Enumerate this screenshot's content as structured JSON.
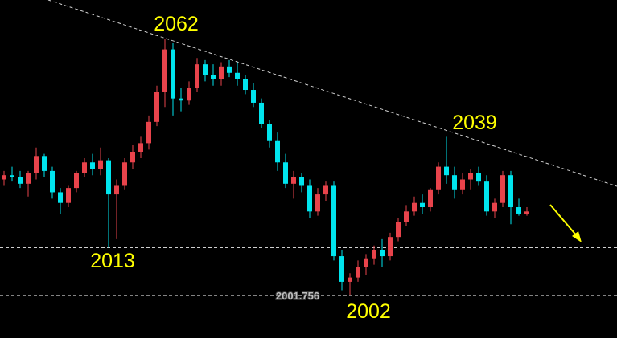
{
  "chart_data": {
    "type": "candlestick",
    "up_color": "#e8434b",
    "down_color": "#00e5ee",
    "level_color": "#cfcfcf",
    "ylim": [
      1991.8,
      2071.1
    ],
    "open": [
      2029,
      2030,
      2029.5,
      2028,
      2030.5,
      2034.5,
      2031,
      2026,
      2023.5,
      2027,
      2030.5,
      2033,
      2031.5,
      2033.5,
      2025.5,
      2027.5,
      2033,
      2035.5,
      2037.5,
      2042.5,
      2049.5,
      2059.5,
      2048,
      2047.5,
      2050.5,
      2056,
      2053.5,
      2052.5,
      2055.5,
      2054,
      2052.5,
      2050,
      2047,
      2042,
      2038,
      2033,
      2028,
      2029.5,
      2027.5,
      2021.5,
      2025.5,
      2027.5,
      2011,
      2005,
      2006,
      2008.5,
      2010.5,
      2012.5,
      2011,
      2015.5,
      2019,
      2021.5,
      2023.5,
      2022.5,
      2026.5,
      2032,
      2030,
      2026.5,
      2029,
      2030.5,
      2028.5,
      2021.5,
      2023.5,
      2030,
      2022.5,
      2021
    ],
    "high": [
      2031,
      2032,
      2031,
      2031,
      2036.5,
      2035,
      2032,
      2027,
      2027.5,
      2031,
      2034,
      2035,
      2036.5,
      2034,
      2029,
      2034,
      2037,
      2039,
      2044,
      2051,
      2062,
      2061,
      2050.5,
      2052,
      2057.5,
      2057,
      2056,
      2056.5,
      2057,
      2056.5,
      2053.5,
      2051.5,
      2048,
      2043,
      2040,
      2035,
      2031,
      2030.5,
      2029,
      2027,
      2028.5,
      2028.5,
      2012.5,
      2007,
      2010,
      2011.5,
      2013.5,
      2015,
      2016.5,
      2020,
      2023,
      2025,
      2025.5,
      2027,
      2033,
      2039,
      2032,
      2030.5,
      2031.5,
      2032,
      2030,
      2024.5,
      2031,
      2031,
      2024.5,
      2022.5
    ],
    "low": [
      2027.5,
      2028.5,
      2027,
      2025,
      2029,
      2029.5,
      2024.5,
      2021,
      2022.5,
      2026,
      2029.5,
      2030,
      2030,
      2013,
      2015,
      2026.5,
      2031.5,
      2034,
      2036,
      2041.5,
      2046,
      2044,
      2045,
      2046.5,
      2049.5,
      2052,
      2051,
      2051,
      2053,
      2051,
      2049,
      2046,
      2041,
      2036.5,
      2031,
      2027,
      2024.5,
      2026,
      2020,
      2020.5,
      2024,
      2010,
      2003,
      2001.756,
      2005,
      2006.5,
      2009,
      2008.5,
      2010,
      2014.5,
      2018,
      2020.5,
      2021,
      2021.5,
      2025.5,
      2028,
      2024.5,
      2025.5,
      2026.5,
      2027.5,
      2020.5,
      2020,
      2022.5,
      2018.5,
      2020.5,
      2020.5
    ],
    "close": [
      2030,
      2029.5,
      2028,
      2030.5,
      2034.5,
      2031,
      2026,
      2023.5,
      2027,
      2030.5,
      2033,
      2031.5,
      2033.5,
      2025.5,
      2027.5,
      2033,
      2035.5,
      2037.5,
      2042.5,
      2049.5,
      2059.5,
      2048,
      2047.5,
      2050.5,
      2056,
      2053.5,
      2052.5,
      2055.5,
      2054,
      2052.5,
      2050,
      2047,
      2042,
      2038,
      2033,
      2028,
      2029.5,
      2027.5,
      2021.5,
      2025.5,
      2027.5,
      2011,
      2005,
      2006,
      2008.5,
      2010.5,
      2012.5,
      2011,
      2015.5,
      2019,
      2021.5,
      2023.5,
      2022.5,
      2026.5,
      2032,
      2030,
      2026.5,
      2029,
      2030.5,
      2028.5,
      2021.5,
      2023.5,
      2030,
      2022.5,
      2021,
      2021.5
    ],
    "levels": [
      2013,
      2001.756
    ],
    "annotations": [
      "2062",
      "2013",
      "2039",
      "2002"
    ]
  }
}
